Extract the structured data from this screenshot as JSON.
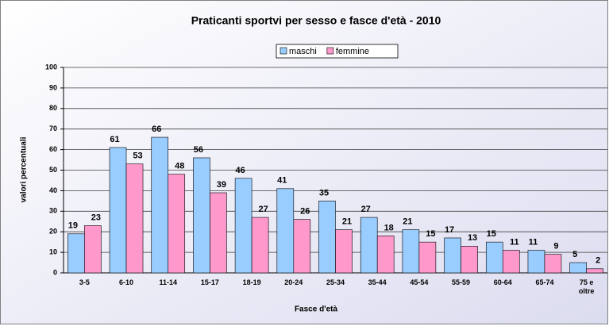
{
  "chart_data": {
    "type": "bar",
    "title": "Praticanti sportvi per sesso e fasce d'età - 2010",
    "x_label": "Fasce d'età",
    "y_label": "valori percentuali",
    "categories": [
      "3-5",
      "6-10",
      "11-14",
      "15-17",
      "18-19",
      "20-24",
      "25-34",
      "35-44",
      "45-54",
      "55-59",
      "60-64",
      "65-74",
      "75 e oltre"
    ],
    "series": [
      {
        "name": "maschi",
        "color": "#99ccff",
        "values": [
          19,
          61,
          66,
          56,
          46,
          41,
          35,
          27,
          21,
          17,
          15,
          11,
          5
        ]
      },
      {
        "name": "femmine",
        "color": "#ff99cc",
        "values": [
          23,
          53,
          48,
          39,
          27,
          26,
          21,
          18,
          15,
          13,
          11,
          9,
          2
        ]
      }
    ],
    "ylim": [
      0,
      100
    ],
    "yticks": [
      0,
      10,
      20,
      30,
      40,
      50,
      60,
      70,
      80,
      90,
      100
    ],
    "grid": true,
    "legend": "top"
  }
}
